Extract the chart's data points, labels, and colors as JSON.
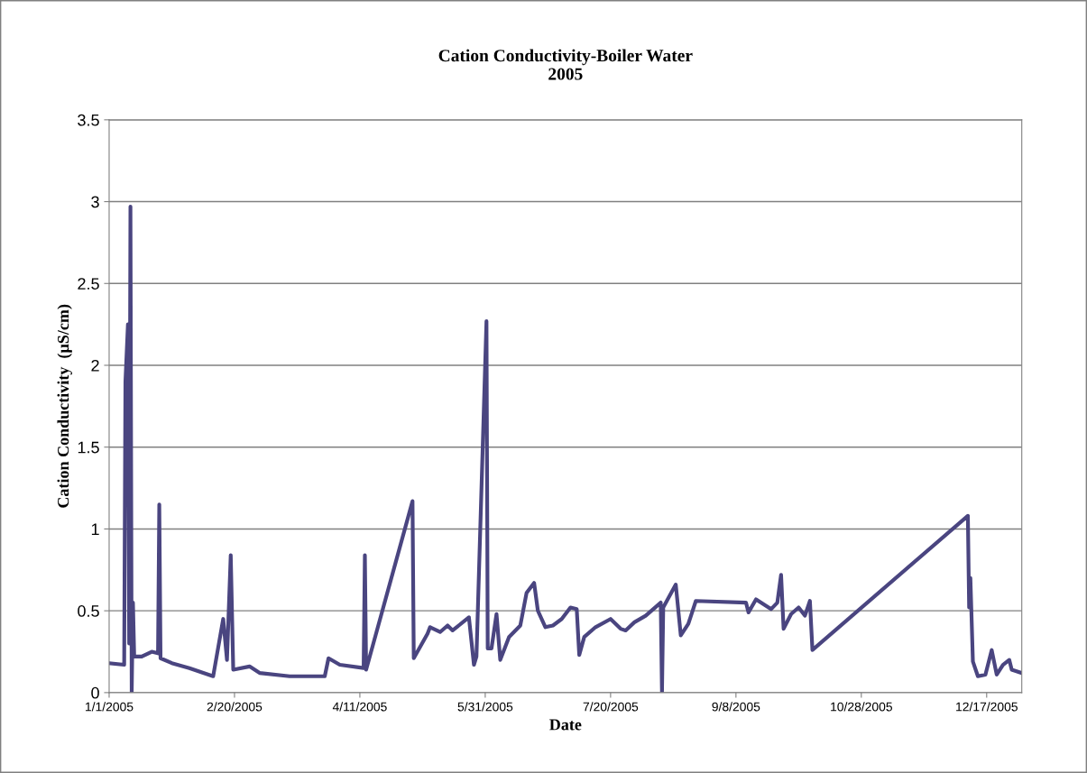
{
  "chart_data": {
    "type": "line",
    "title": "Cation Conductivity-Boiler Water\n2005",
    "xlabel": "Date",
    "ylabel": "Cation Conductivity  (µS/cm)",
    "x": [
      "2005-01-01",
      "2005-01-07",
      "2005-01-07T12:00",
      "2005-01-08T12:00",
      "2005-01-09",
      "2005-01-09T12:00",
      "2005-01-10",
      "2005-01-10T12:00",
      "2005-01-11",
      "2005-01-14",
      "2005-01-18",
      "2005-01-20T12:00",
      "2005-01-21",
      "2005-01-21T12:00",
      "2005-01-26",
      "2005-02-02",
      "2005-02-11T12:00",
      "2005-02-15T12:00",
      "2005-02-17",
      "2005-02-18T12:00",
      "2005-02-19T12:00",
      "2005-02-26",
      "2005-03-02",
      "2005-03-14",
      "2005-03-28",
      "2005-03-29T12:00",
      "2005-04-03",
      "2005-04-12T12:00",
      "2005-04-13",
      "2005-04-13T12:00",
      "2005-05-02",
      "2005-05-02T12:00",
      "2005-05-08",
      "2005-05-09",
      "2005-05-13",
      "2005-05-16",
      "2005-05-18",
      "2005-05-24T12:00",
      "2005-05-26T12:00",
      "2005-05-27T12:00",
      "2005-05-31T12:00",
      "2005-06-01",
      "2005-06-02T12:00",
      "2005-06-04T12:00",
      "2005-06-06",
      "2005-06-09T12:00",
      "2005-06-14",
      "2005-06-16T12:00",
      "2005-06-19T12:00",
      "2005-06-21",
      "2005-06-24",
      "2005-06-27",
      "2005-06-30T12:00",
      "2005-07-04",
      "2005-07-06T12:00",
      "2005-07-07T12:00",
      "2005-07-09T12:00",
      "2005-07-14",
      "2005-07-20",
      "2005-07-24",
      "2005-07-26",
      "2005-07-29T12:00",
      "2005-08-03",
      "2005-08-09",
      "2005-08-09T12:00",
      "2005-08-10",
      "2005-08-15",
      "2005-08-17",
      "2005-08-20",
      "2005-08-23",
      "2005-09-12",
      "2005-09-13",
      "2005-09-16",
      "2005-09-22",
      "2005-09-24T12:00",
      "2005-09-26",
      "2005-09-27",
      "2005-09-30",
      "2005-10-03",
      "2005-10-05T12:00",
      "2005-10-07T12:00",
      "2005-10-08T12:00",
      "2005-12-09T12:00",
      "2005-12-10",
      "2005-12-10T12:00",
      "2005-12-11T12:00",
      "2005-12-13T12:00",
      "2005-12-16T12:00",
      "2005-12-19",
      "2005-12-21",
      "2005-12-23T12:00",
      "2005-12-26",
      "2005-12-27",
      "2005-12-31"
    ],
    "series": [
      {
        "color": "#4a4580",
        "values": [
          0.18,
          0.17,
          1.9,
          2.25,
          0.3,
          2.97,
          0,
          0.55,
          0.22,
          0.22,
          0.25,
          0.24,
          1.15,
          0.21,
          0.18,
          0.15,
          0.1,
          0.45,
          0.2,
          0.84,
          0.14,
          0.16,
          0.12,
          0.1,
          0.1,
          0.21,
          0.17,
          0.15,
          0.84,
          0.14,
          1.17,
          0.21,
          0.36,
          0.4,
          0.37,
          0.41,
          0.38,
          0.46,
          0.17,
          0.22,
          2.27,
          0.27,
          0.27,
          0.48,
          0.2,
          0.34,
          0.41,
          0.61,
          0.67,
          0.5,
          0.4,
          0.41,
          0.45,
          0.52,
          0.51,
          0.23,
          0.34,
          0.4,
          0.45,
          0.39,
          0.38,
          0.43,
          0.47,
          0.55,
          0,
          0.52,
          0.66,
          0.35,
          0.42,
          0.56,
          0.55,
          0.49,
          0.57,
          0.51,
          0.55,
          0.72,
          0.39,
          0.48,
          0.52,
          0.47,
          0.56,
          0.26,
          1.08,
          0.52,
          0.7,
          0.19,
          0.1,
          0.11,
          0.26,
          0.11,
          0.17,
          0.2,
          0.14,
          0.12
        ]
      }
    ],
    "xlim": [
      "2005-01-01",
      "2005-12-31"
    ],
    "xticks": [
      {
        "value": "2005-01-01",
        "label": "1/1/2005"
      },
      {
        "value": "2005-02-20",
        "label": "2/20/2005"
      },
      {
        "value": "2005-04-11",
        "label": "4/11/2005"
      },
      {
        "value": "2005-05-31",
        "label": "5/31/2005"
      },
      {
        "value": "2005-07-20",
        "label": "7/20/2005"
      },
      {
        "value": "2005-09-08",
        "label": "9/8/2005"
      },
      {
        "value": "2005-10-28",
        "label": "10/28/2005"
      },
      {
        "value": "2005-12-17",
        "label": "12/17/2005"
      }
    ],
    "ylim": [
      0,
      3.5
    ],
    "yticks": [
      0,
      0.5,
      1,
      1.5,
      2,
      2.5,
      3,
      3.5
    ],
    "grid": "y",
    "marker": "none",
    "line_style": "solid"
  }
}
